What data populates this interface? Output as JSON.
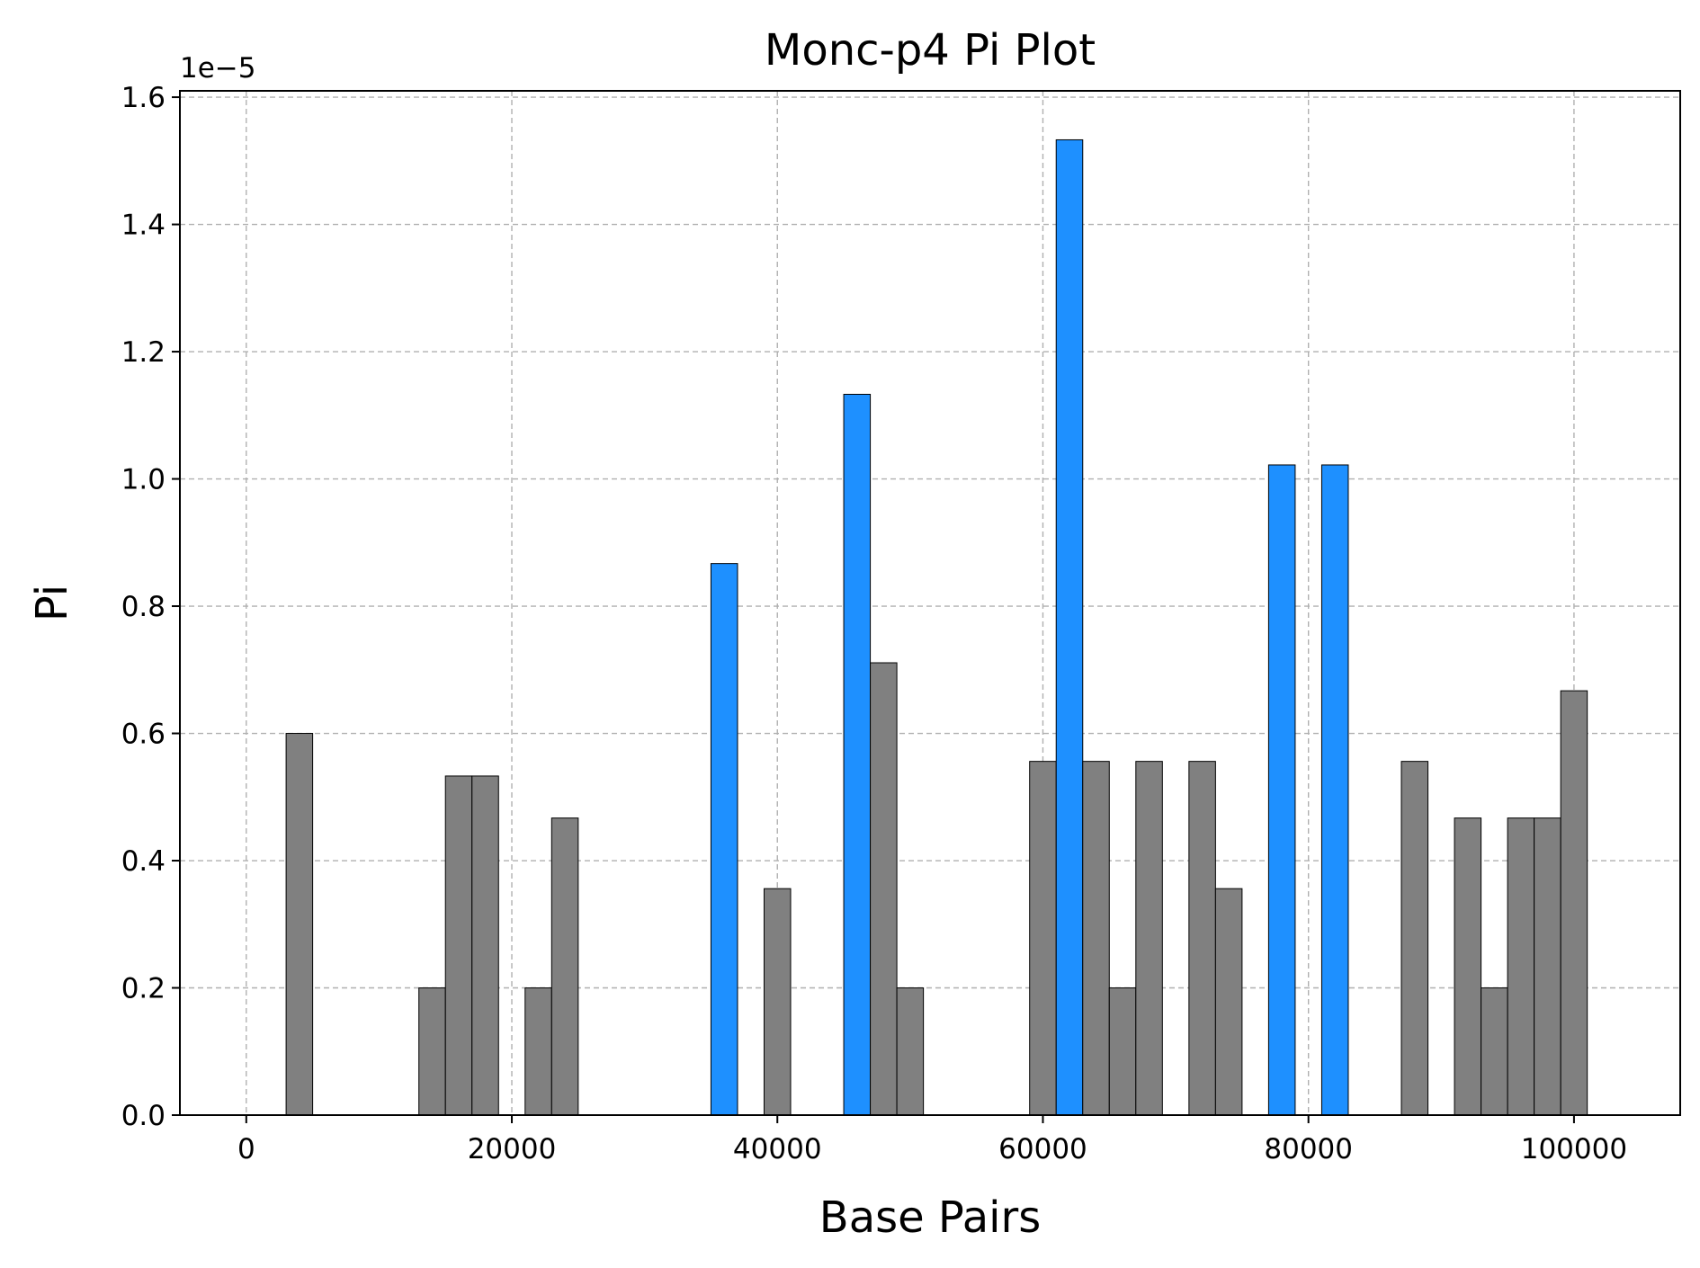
{
  "chart_data": {
    "type": "bar",
    "title": "Monc-p4 Pi Plot",
    "xlabel": "Base Pairs",
    "ylabel": "Pi",
    "y_offset_label": "1e−5",
    "xlim": [
      -5000,
      108000
    ],
    "ylim": [
      0,
      1.61e-05
    ],
    "x_ticks": [
      0,
      20000,
      40000,
      60000,
      80000,
      100000
    ],
    "x_tick_labels": [
      "0",
      "20000",
      "40000",
      "60000",
      "80000",
      "100000"
    ],
    "y_ticks": [
      0,
      2e-06,
      4e-06,
      6e-06,
      8e-06,
      1e-05,
      1.2e-05,
      1.4e-05,
      1.6e-05
    ],
    "y_tick_labels": [
      "0.0",
      "0.2",
      "0.4",
      "0.6",
      "0.8",
      "1.0",
      "1.2",
      "1.4",
      "1.6"
    ],
    "grid": true,
    "bar_width": 2000,
    "colors": {
      "normal": "#808080",
      "highlight": "#1e90ff",
      "edge": "#000000"
    },
    "bars": [
      {
        "x": 4000,
        "value": 6e-06,
        "highlight": false
      },
      {
        "x": 14000,
        "value": 2e-06,
        "highlight": false
      },
      {
        "x": 16000,
        "value": 5.33e-06,
        "highlight": false
      },
      {
        "x": 18000,
        "value": 5.33e-06,
        "highlight": false
      },
      {
        "x": 22000,
        "value": 2e-06,
        "highlight": false
      },
      {
        "x": 24000,
        "value": 4.67e-06,
        "highlight": false
      },
      {
        "x": 36000,
        "value": 8.67e-06,
        "highlight": true
      },
      {
        "x": 40000,
        "value": 3.56e-06,
        "highlight": false
      },
      {
        "x": 46000,
        "value": 1.133e-05,
        "highlight": true
      },
      {
        "x": 48000,
        "value": 7.11e-06,
        "highlight": false
      },
      {
        "x": 50000,
        "value": 2e-06,
        "highlight": false
      },
      {
        "x": 60000,
        "value": 5.56e-06,
        "highlight": false
      },
      {
        "x": 62000,
        "value": 1.533e-05,
        "highlight": true
      },
      {
        "x": 64000,
        "value": 5.56e-06,
        "highlight": false
      },
      {
        "x": 66000,
        "value": 2e-06,
        "highlight": false
      },
      {
        "x": 68000,
        "value": 5.56e-06,
        "highlight": false
      },
      {
        "x": 72000,
        "value": 5.56e-06,
        "highlight": false
      },
      {
        "x": 74000,
        "value": 3.56e-06,
        "highlight": false
      },
      {
        "x": 78000,
        "value": 1.022e-05,
        "highlight": true
      },
      {
        "x": 82000,
        "value": 1.022e-05,
        "highlight": true
      },
      {
        "x": 88000,
        "value": 5.56e-06,
        "highlight": false
      },
      {
        "x": 92000,
        "value": 4.67e-06,
        "highlight": false
      },
      {
        "x": 94000,
        "value": 2e-06,
        "highlight": false
      },
      {
        "x": 96000,
        "value": 4.67e-06,
        "highlight": false
      },
      {
        "x": 98000,
        "value": 4.67e-06,
        "highlight": false
      },
      {
        "x": 100000,
        "value": 6.67e-06,
        "highlight": false
      }
    ]
  }
}
